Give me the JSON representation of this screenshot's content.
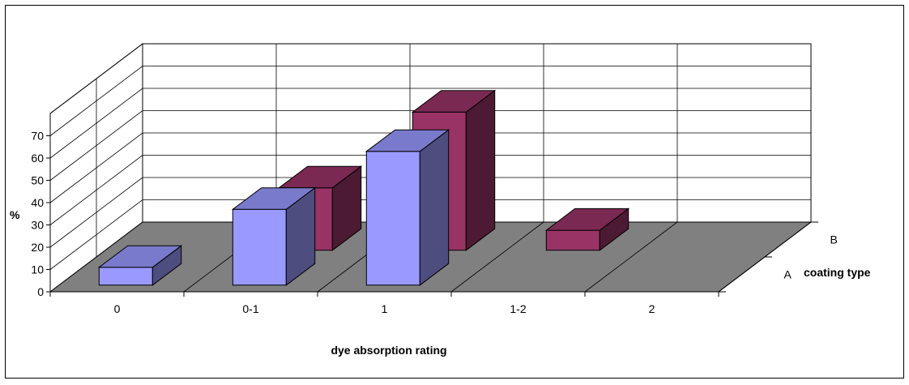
{
  "chart_data": {
    "type": "bar",
    "subtype": "3d-clustered-depth",
    "categories": [
      "0",
      "0-1",
      "1",
      "1-2",
      "2"
    ],
    "series": [
      {
        "name": "A",
        "values": [
          8,
          34,
          60,
          0,
          0
        ],
        "color": "#9999ff"
      },
      {
        "name": "B",
        "values": [
          0,
          28,
          62,
          9,
          0
        ],
        "color": "#993366"
      }
    ],
    "xlabel": "dye absorption rating",
    "ylabel": "%",
    "zlabel": "coating type",
    "y_ticks": [
      "0",
      "10",
      "20",
      "30",
      "40",
      "50",
      "60",
      "70"
    ],
    "ylim": [
      0,
      70
    ],
    "grid": true,
    "legend": "none",
    "floor_color": "#808080"
  }
}
